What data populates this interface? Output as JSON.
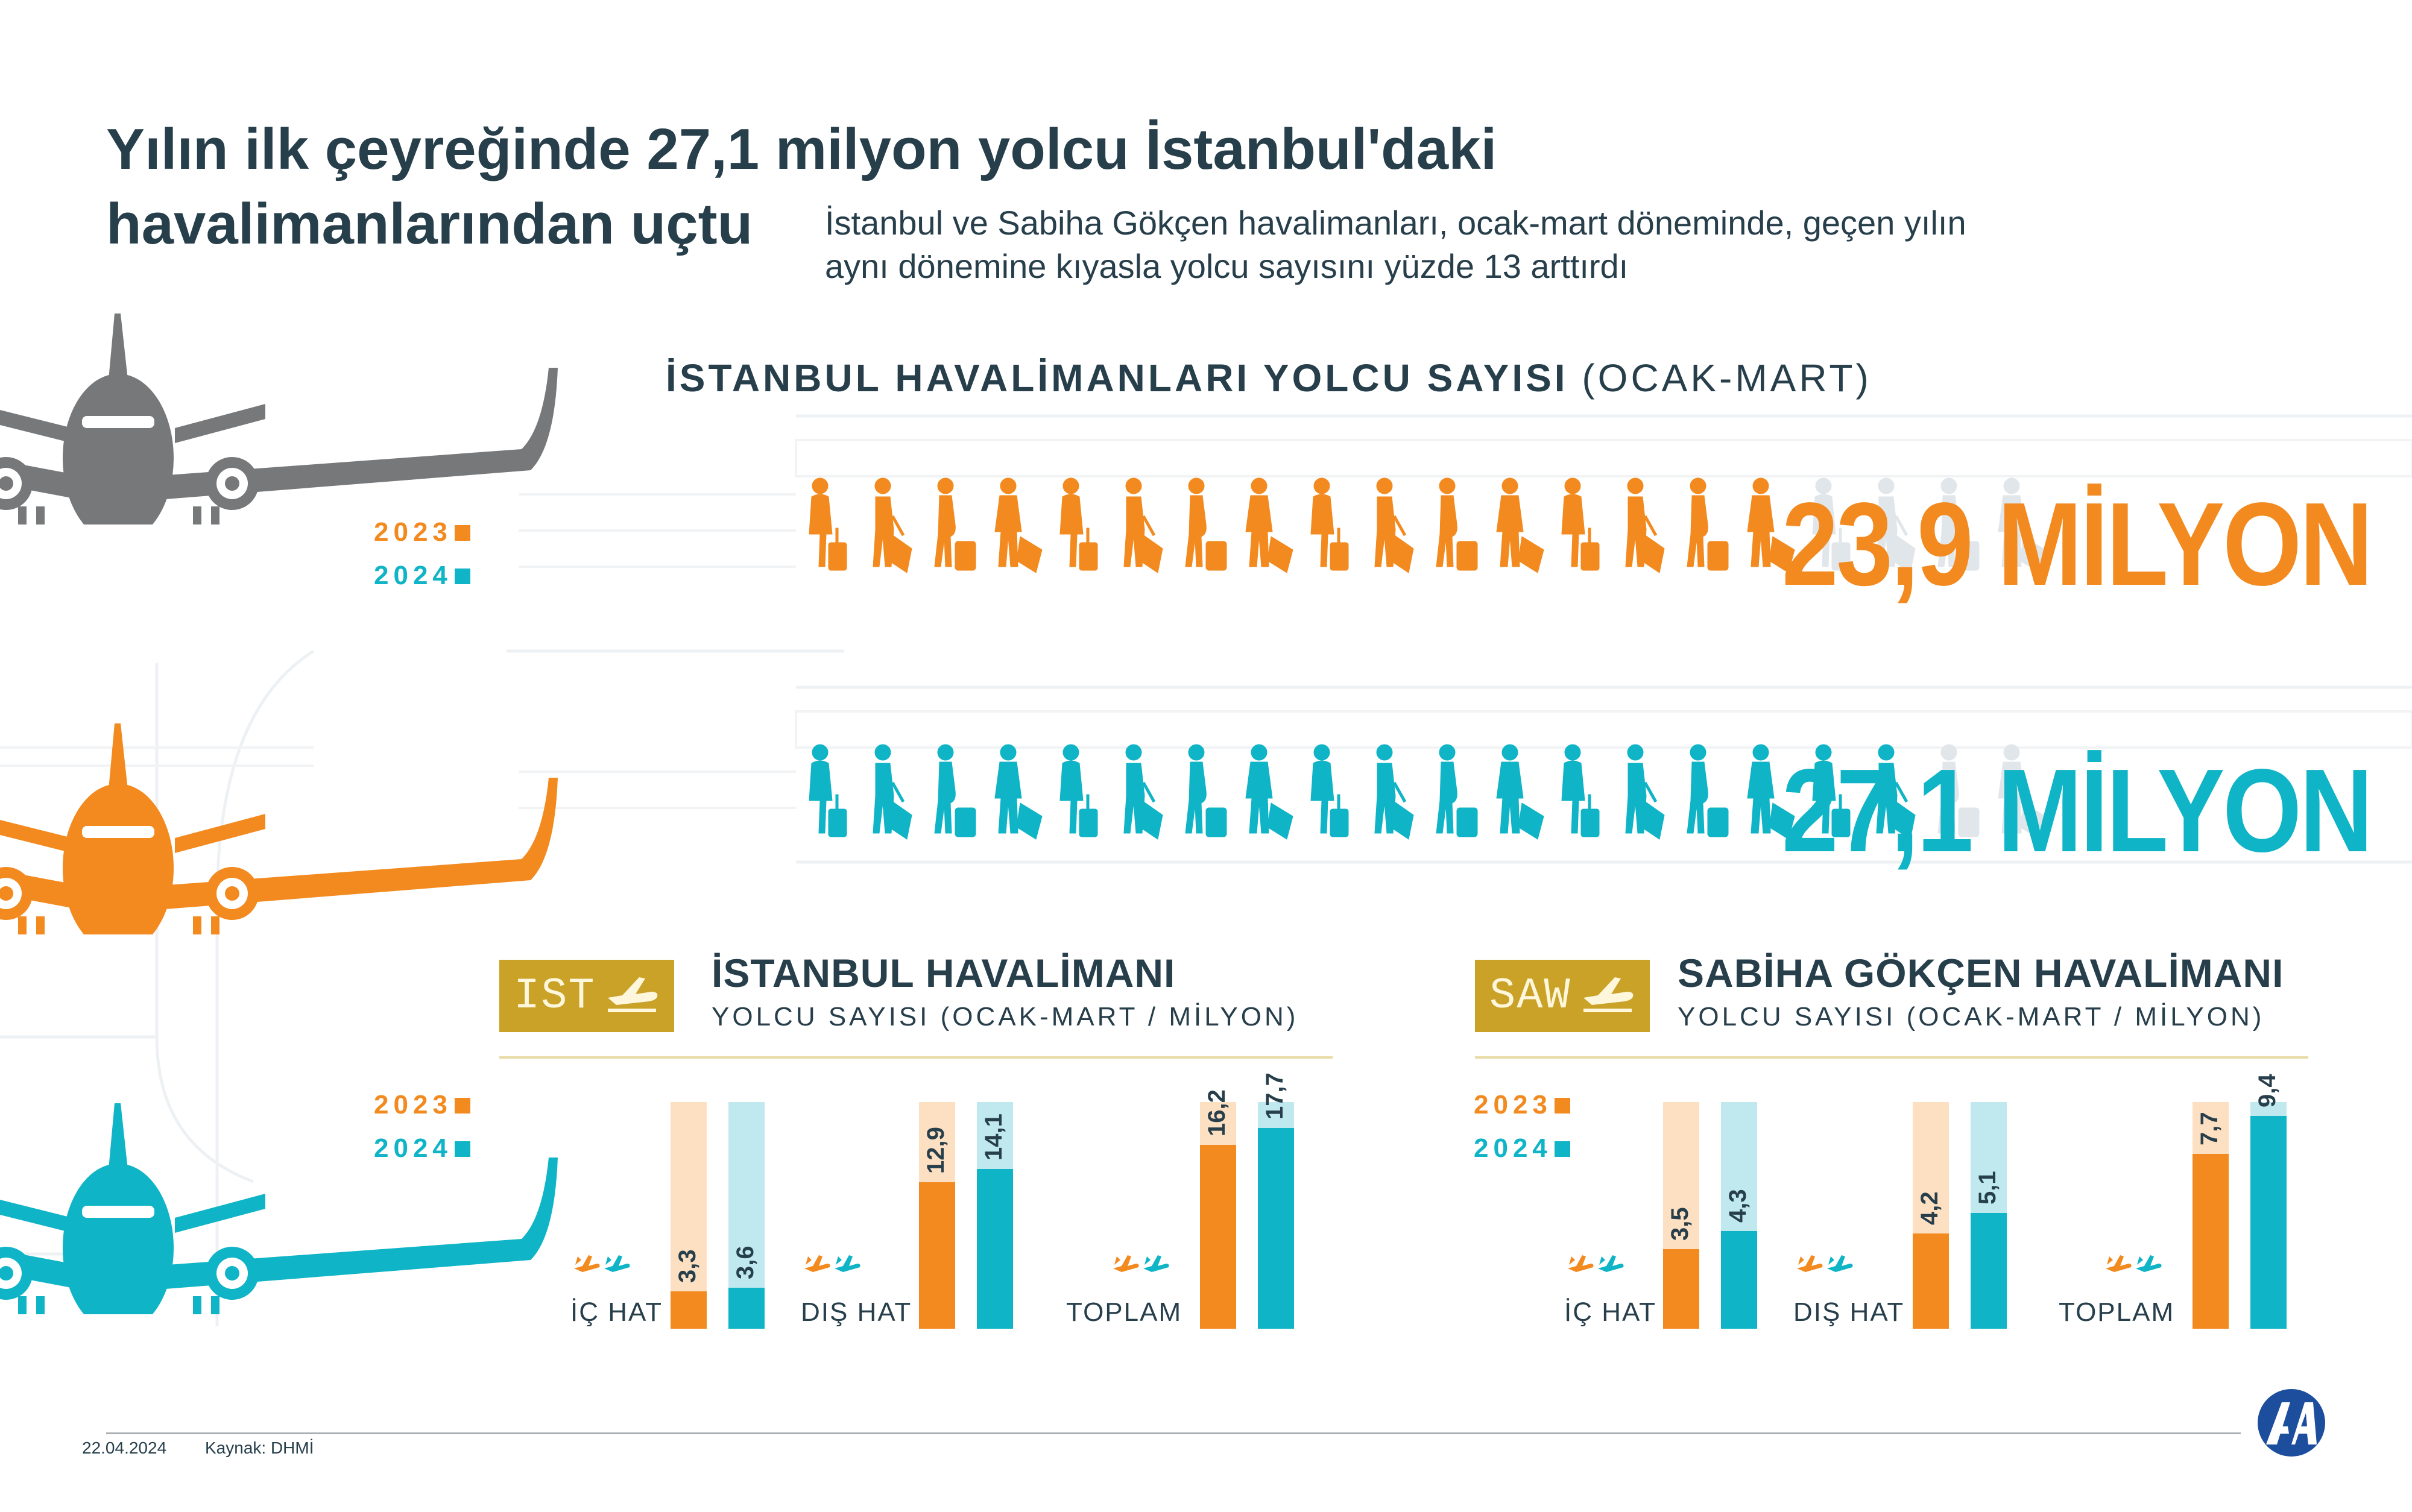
{
  "title": {
    "line1": "Yılın ilk çeyreğinde 27,1 milyon yolcu İstanbul'daki",
    "line2": "havalimanlarından uçtu"
  },
  "subtitle": {
    "line1": "İstanbul ve Sabiha Gökçen havalimanları, ocak-mart döneminde, geçen yılın",
    "line2": "aynı dönemine kıyasla yolcu sayısını yüzde 13 arttırdı"
  },
  "section": {
    "title_bold": "İSTANBUL HAVALİMANLARI YOLCU SAYISI",
    "title_light": "(OCAK-MART)"
  },
  "legend": {
    "y2023": "2023",
    "y2024": "2024"
  },
  "colors": {
    "y2023": "#f28a1f",
    "y2024": "#0fb4c6",
    "y2023_light": "#fddfc1",
    "y2024_light": "#bfe9ef",
    "people_gray": "#e1e6ea",
    "text_dark": "#273e4b",
    "badge": "#c9a227",
    "plane_gray": "#76787a"
  },
  "totals": {
    "y2023_label": "23,9 MİLYON",
    "y2024_label": "27,1 MİLYON"
  },
  "airports": {
    "ist": {
      "badge": "IST",
      "name": "İSTANBUL HAVALİMANI",
      "sub": "YOLCU SAYISI (OCAK-MART / MİLYON)"
    },
    "saw": {
      "badge": "SAW",
      "name": "SABİHA GÖKÇEN HAVALİMANI",
      "sub": "YOLCU SAYISI (OCAK-MART / MİLYON)"
    }
  },
  "categories": {
    "ic_hat": "İÇ HAT",
    "dis_hat": "DIŞ HAT",
    "toplam": "TOPLAM"
  },
  "footer": {
    "date": "22.04.2024",
    "source": "Kaynak: DHMİ"
  },
  "chart_data": [
    {
      "type": "pictogram",
      "title": "İSTANBUL HAVALİMANLARI YOLCU SAYISI (OCAK-MART)",
      "categories": [
        "2023",
        "2024"
      ],
      "values": [
        23.9,
        27.1
      ],
      "labels": [
        "23,9 MİLYON",
        "27,1 MİLYON"
      ],
      "unit": "milyon"
    },
    {
      "type": "bar",
      "title": "İSTANBUL HAVALİMANI",
      "subtitle": "YOLCU SAYISI (OCAK-MART / MİLYON)",
      "categories": [
        "İÇ HAT",
        "DIŞ HAT",
        "TOPLAM"
      ],
      "series": [
        {
          "name": "2023",
          "values": [
            3.3,
            12.9,
            16.2
          ],
          "labels": [
            "3,3",
            "12,9",
            "16,2"
          ]
        },
        {
          "name": "2024",
          "values": [
            3.6,
            14.1,
            17.7
          ],
          "labels": [
            "3,6",
            "14,1",
            "17,7"
          ]
        }
      ],
      "ylim": [
        0,
        20
      ]
    },
    {
      "type": "bar",
      "title": "SABİHA GÖKÇEN HAVALİMANI",
      "subtitle": "YOLCU SAYISI (OCAK-MART / MİLYON)",
      "categories": [
        "İÇ HAT",
        "DIŞ HAT",
        "TOPLAM"
      ],
      "series": [
        {
          "name": "2023",
          "values": [
            3.5,
            4.2,
            7.7
          ],
          "labels": [
            "3,5",
            "4,2",
            "7,7"
          ]
        },
        {
          "name": "2024",
          "values": [
            4.3,
            5.1,
            9.4
          ],
          "labels": [
            "4,3",
            "5,1",
            "9,4"
          ]
        }
      ],
      "ylim": [
        0,
        10
      ]
    }
  ]
}
